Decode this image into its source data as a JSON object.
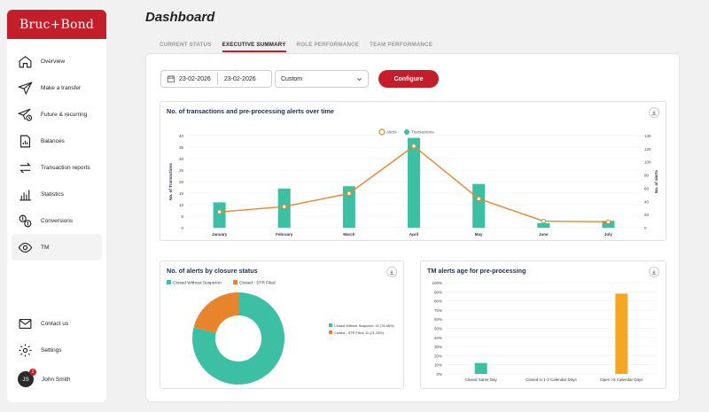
{
  "brand": "Bruc+Bond",
  "page_title": "Dashboard",
  "nav": {
    "items": [
      {
        "label": "Overview",
        "icon": "home-icon"
      },
      {
        "label": "Make a transfer",
        "icon": "send-icon"
      },
      {
        "label": "Future & recurring",
        "icon": "scheduled-send-icon"
      },
      {
        "label": "Balances",
        "icon": "document-chart-icon"
      },
      {
        "label": "Transaction reports",
        "icon": "arrows-exchange-icon"
      },
      {
        "label": "Statistics",
        "icon": "bar-chart-icon"
      },
      {
        "label": "Conversions",
        "icon": "currency-exchange-icon"
      },
      {
        "label": "TM",
        "icon": "eye-icon"
      }
    ],
    "bottom": [
      {
        "label": "Contact us",
        "icon": "mail-icon"
      },
      {
        "label": "Settings",
        "icon": "gear-icon"
      }
    ],
    "user": {
      "name": "John Smith",
      "initials": "JS",
      "badge": "1"
    }
  },
  "tabs": [
    "CURRENT STATUS",
    "EXECUTIVE SUMMARY",
    "ROLE PERFORMANCE",
    "TEAM PERFORMANCE"
  ],
  "active_tab": 1,
  "filters": {
    "date_from": "23-02-2026",
    "date_to": "23-02-2026",
    "period": "Custom",
    "configure_label": "Configure"
  },
  "colors": {
    "accent": "#c41e2a",
    "teal": "#3cbfa3",
    "orange": "#e8842c",
    "yellow": "#f5a623"
  },
  "chart_data": [
    {
      "type": "bar",
      "title": "No. of transactions and pre-processing alerts over time",
      "categories": [
        "January",
        "February",
        "March",
        "April",
        "May",
        "June",
        "July"
      ],
      "series": [
        {
          "name": "Transactions",
          "type": "bar",
          "axis": "left",
          "values": [
            11,
            17,
            18,
            39,
            19,
            2,
            3
          ]
        },
        {
          "name": "Alerts",
          "type": "line",
          "axis": "right",
          "values": [
            24,
            32,
            52,
            124,
            44,
            10,
            9
          ]
        }
      ],
      "ylabel": "No. of Transactions",
      "ylabel_right": "No. of alerts",
      "ylim": [
        0,
        40
      ],
      "yticks": [
        0,
        5,
        10,
        15,
        20,
        25,
        30,
        35,
        40
      ],
      "ylim_right": [
        0,
        140
      ],
      "yticks_right": [
        0,
        20,
        40,
        60,
        80,
        100,
        120,
        140
      ],
      "legend": [
        "Alerts",
        "Transactions"
      ],
      "legend_position": "top"
    },
    {
      "type": "pie",
      "title": "No. of alerts by closure status",
      "legend_top": [
        "Closed Without Suspicion",
        "Closed - STR Filed"
      ],
      "legend_right": [
        "Closed Without Suspicion: 41 (78.85%)",
        "Closed - STR Filed: 11 (21.15%)"
      ],
      "slices": [
        {
          "label": "Closed Without Suspicion",
          "value": 41
        },
        {
          "label": "Closed - STR Filed",
          "value": 11
        }
      ],
      "donut": true
    },
    {
      "type": "bar",
      "title": "TM alerts age for pre-processing",
      "categories": [
        "Closed Same Day",
        "Closed in 1-3 Calendar Days",
        "Open >3 Calendar Days"
      ],
      "values": [
        12,
        0,
        88
      ],
      "ylim": [
        0,
        100
      ],
      "yticks": [
        "0%",
        "10%",
        "20%",
        "30%",
        "40%",
        "50%",
        "60%",
        "70%",
        "80%",
        "90%",
        "100%"
      ]
    }
  ]
}
